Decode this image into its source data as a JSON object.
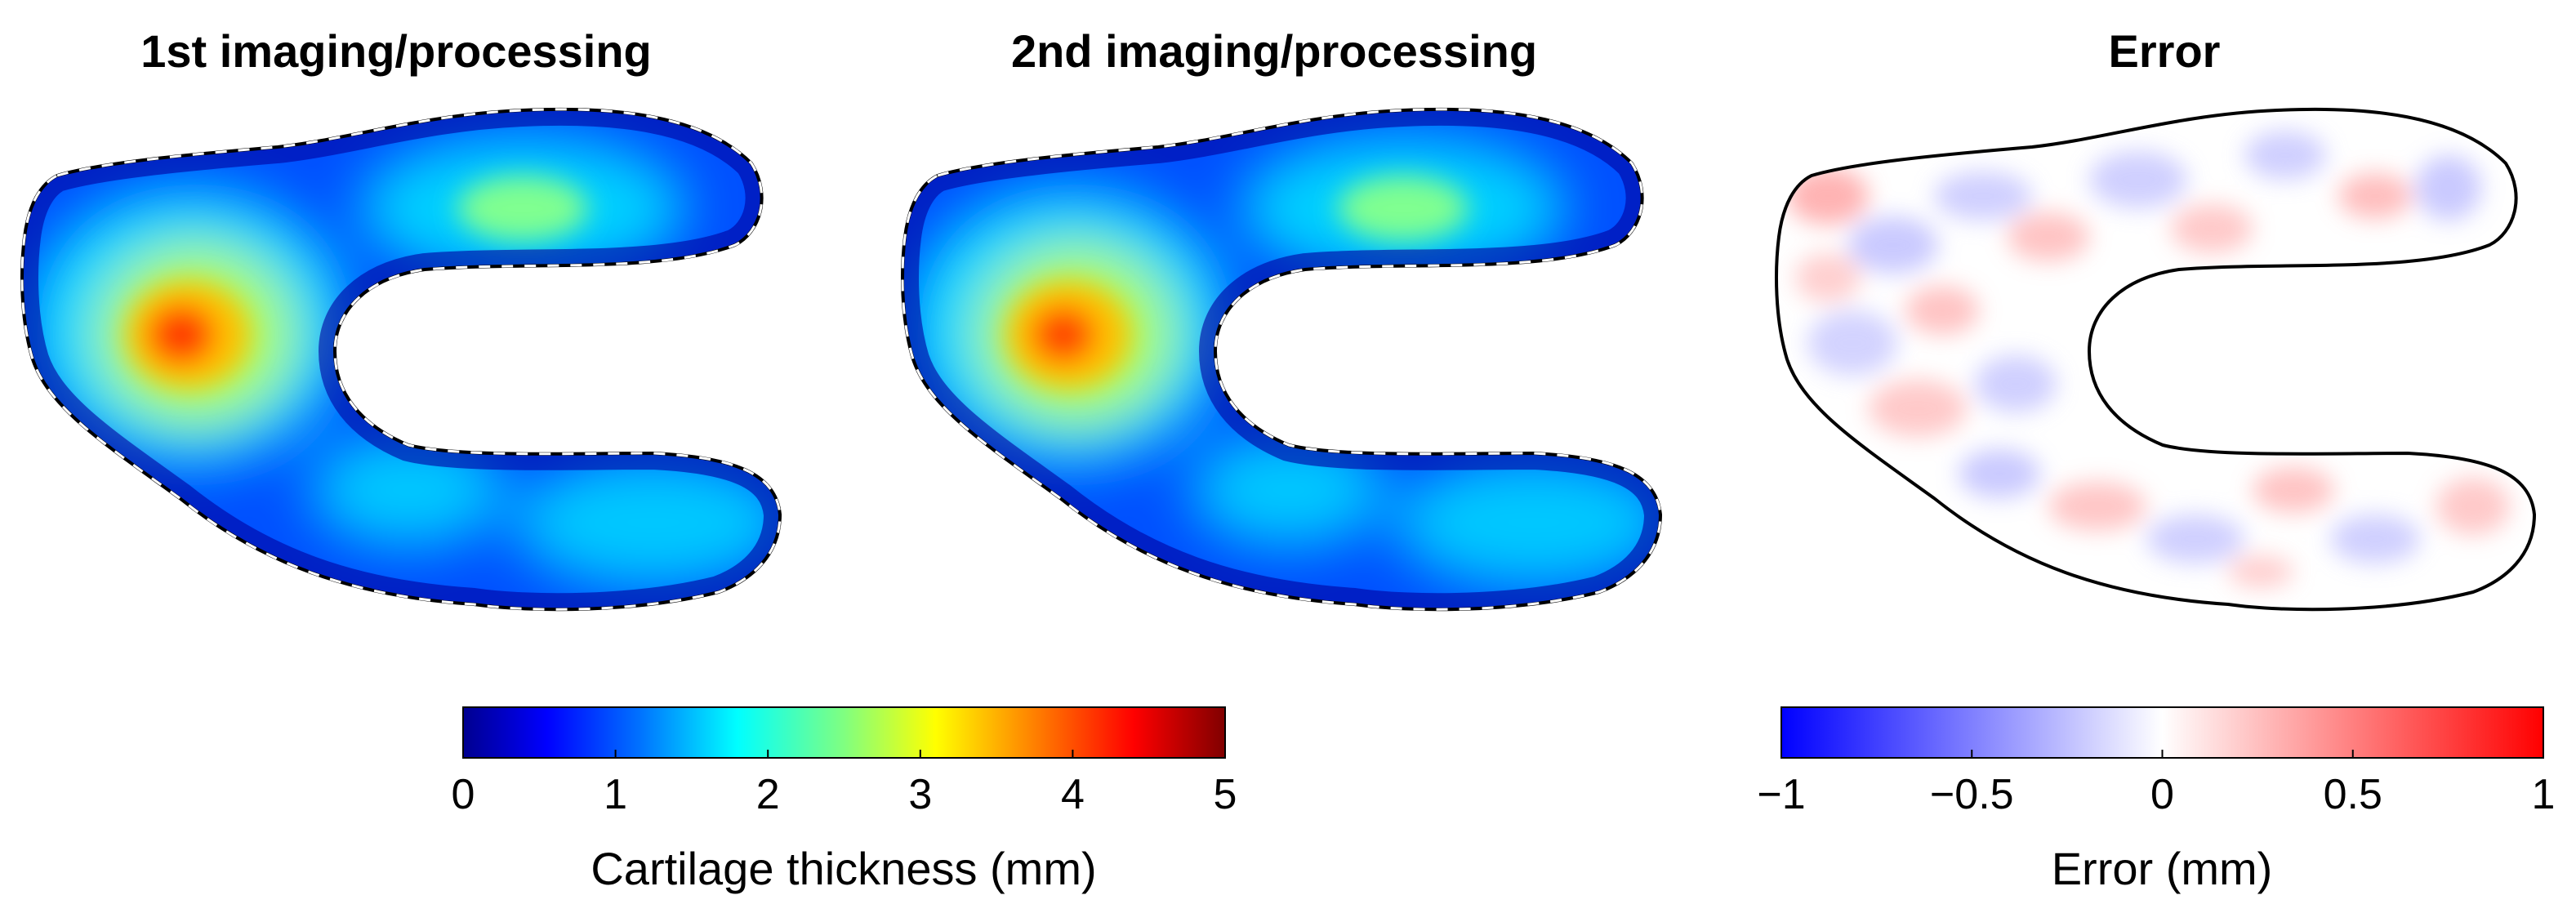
{
  "chart_data": {
    "type": "heatmap",
    "panels": [
      {
        "title": "1st imaging/processing",
        "colormap": "jet",
        "value_range": [
          0,
          5
        ],
        "outline": "dashed-white-on-black"
      },
      {
        "title": "2nd imaging/processing",
        "colormap": "jet",
        "value_range": [
          0,
          5
        ],
        "outline": "dashed-white-on-black"
      },
      {
        "title": "Error",
        "colormap": "blue-white-red",
        "value_range": [
          -1,
          1
        ],
        "outline": "solid-black"
      }
    ],
    "thickness_features": [
      {
        "region": "left hot spot",
        "value": 4.2
      },
      {
        "region": "upper right",
        "value": 2.4
      },
      {
        "region": "lower right",
        "value": 2.0
      },
      {
        "region": "background",
        "value": 1.5
      }
    ],
    "colorbars": [
      {
        "label": "Cartilage thickness (mm)",
        "ticks": [
          0,
          1,
          2,
          3,
          4,
          5
        ],
        "tick_labels": [
          "0",
          "1",
          "2",
          "3",
          "4",
          "5"
        ],
        "range": [
          0,
          5
        ]
      },
      {
        "label": "Error (mm)",
        "ticks": [
          -1,
          -0.5,
          0,
          0.5,
          1
        ],
        "tick_labels": [
          "−1",
          "−0.5",
          "0",
          "0.5",
          "1"
        ],
        "range": [
          -1,
          1
        ]
      }
    ],
    "colormaps": {
      "jet": [
        "#00008f",
        "#0000ff",
        "#0080ff",
        "#00ffff",
        "#80ff80",
        "#ffff00",
        "#ff8000",
        "#ff0000",
        "#800000"
      ],
      "error": [
        "#0000ff",
        "#ffffff",
        "#ff0000"
      ]
    }
  }
}
